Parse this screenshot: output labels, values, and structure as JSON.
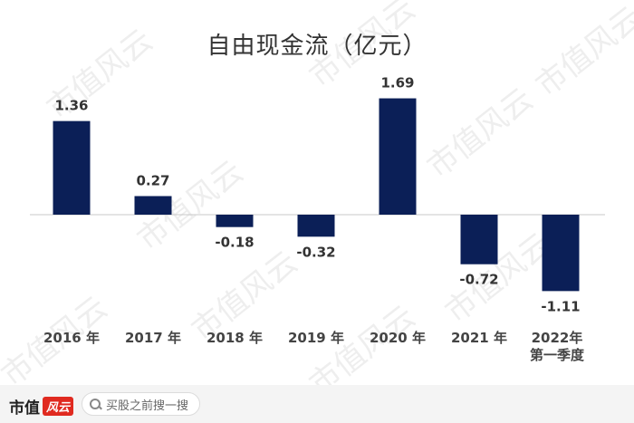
{
  "chart_data": {
    "type": "bar",
    "title": "自由现金流（亿元）",
    "categories": [
      "2016 年",
      "2017 年",
      "2018 年",
      "2019 年",
      "2020 年",
      "2021 年",
      "2022年\n第一季度"
    ],
    "values": [
      1.36,
      0.27,
      -0.18,
      -0.32,
      1.69,
      -0.72,
      -1.11
    ],
    "value_labels": [
      "1.36",
      "0.27",
      "-0.18",
      "-0.32",
      "1.69",
      "-0.72",
      "-1.11"
    ],
    "xlabel": "",
    "ylabel": "",
    "ylim": [
      -1.11,
      1.69
    ],
    "grid": false,
    "legend": "none",
    "bar_color": "#0b1f57"
  },
  "watermark_text": "市值风云",
  "footer": {
    "brand_text": "市值",
    "brand_mark": "风云",
    "search_text": "买股之前搜一搜",
    "search_icon": "search-icon"
  }
}
